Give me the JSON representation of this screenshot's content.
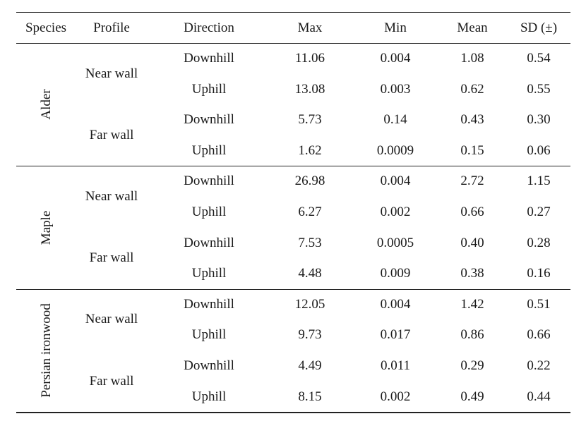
{
  "table": {
    "headers": [
      "Species",
      "Profile",
      "Direction",
      "Max",
      "Min",
      "Mean",
      "SD (±)"
    ],
    "groups": [
      {
        "species": "Alder",
        "profiles": [
          {
            "profile": "Near wall",
            "rows": [
              {
                "direction": "Downhill",
                "max": "11.06",
                "min": "0.004",
                "mean": "1.08",
                "sd": "0.54"
              },
              {
                "direction": "Uphill",
                "max": "13.08",
                "min": "0.003",
                "mean": "0.62",
                "sd": "0.55"
              }
            ]
          },
          {
            "profile": "Far wall",
            "rows": [
              {
                "direction": "Downhill",
                "max": "5.73",
                "min": "0.14",
                "mean": "0.43",
                "sd": "0.30"
              },
              {
                "direction": "Uphill",
                "max": "1.62",
                "min": "0.0009",
                "mean": "0.15",
                "sd": "0.06"
              }
            ]
          }
        ]
      },
      {
        "species": "Maple",
        "profiles": [
          {
            "profile": "Near wall",
            "rows": [
              {
                "direction": "Downhill",
                "max": "26.98",
                "min": "0.004",
                "mean": "2.72",
                "sd": "1.15"
              },
              {
                "direction": "Uphill",
                "max": "6.27",
                "min": "0.002",
                "mean": "0.66",
                "sd": "0.27"
              }
            ]
          },
          {
            "profile": "Far wall",
            "rows": [
              {
                "direction": "Downhill",
                "max": "7.53",
                "min": "0.0005",
                "mean": "0.40",
                "sd": "0.28"
              },
              {
                "direction": "Uphill",
                "max": "4.48",
                "min": "0.009",
                "mean": "0.38",
                "sd": "0.16"
              }
            ]
          }
        ]
      },
      {
        "species": "Persian ironwood",
        "profiles": [
          {
            "profile": "Near wall",
            "rows": [
              {
                "direction": "Downhill",
                "max": "12.05",
                "min": "0.004",
                "mean": "1.42",
                "sd": "0.51"
              },
              {
                "direction": "Uphill",
                "max": "9.73",
                "min": "0.017",
                "mean": "0.86",
                "sd": "0.66"
              }
            ]
          },
          {
            "profile": "Far wall",
            "rows": [
              {
                "direction": "Downhill",
                "max": "4.49",
                "min": "0.011",
                "mean": "0.29",
                "sd": "0.22"
              },
              {
                "direction": "Uphill",
                "max": "8.15",
                "min": "0.002",
                "mean": "0.49",
                "sd": "0.44"
              }
            ]
          }
        ]
      }
    ]
  }
}
